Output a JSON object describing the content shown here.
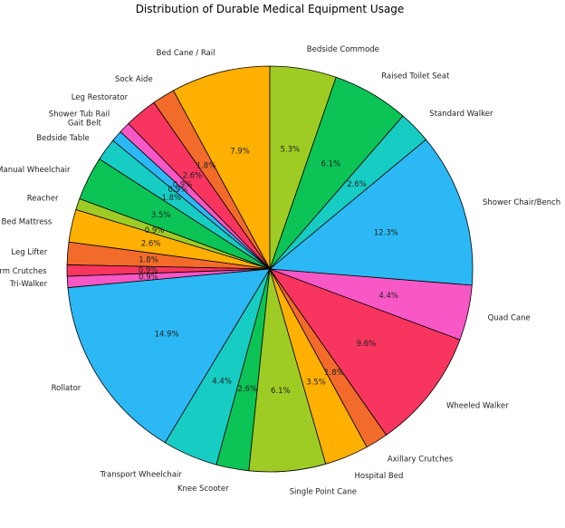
{
  "chart_data": {
    "type": "pie",
    "title": "Distribution of Durable Medical Equipment Usage",
    "start_angle_deg": 90,
    "direction": "counterclockwise",
    "slices": [
      {
        "label": "Bed Cane / Rail",
        "value": 7.9,
        "pct_label": "7.9%",
        "color": "#FFB000"
      },
      {
        "label": "Sock Aide",
        "value": 1.8,
        "pct_label": "1.8%",
        "color": "#F26B2A"
      },
      {
        "label": "Leg Restorator",
        "value": 2.6,
        "pct_label": "2.6%",
        "color": "#F7355F"
      },
      {
        "label": "Shower Tub Rail",
        "value": 0.9,
        "pct_label": "0.9%",
        "color": "#F857C6"
      },
      {
        "label": "Gait Belt",
        "value": 0.9,
        "pct_label": "0.9%",
        "color": "#2BB8F5"
      },
      {
        "label": "Bedside Table",
        "value": 1.8,
        "pct_label": "1.8%",
        "color": "#17CCC3"
      },
      {
        "label": "Manual Wheelchair",
        "value": 3.5,
        "pct_label": "3.5%",
        "color": "#0BC455"
      },
      {
        "label": "Reacher",
        "value": 0.9,
        "pct_label": "0.9%",
        "color": "#9FCC24"
      },
      {
        "label": "Bed Mattress",
        "value": 2.6,
        "pct_label": "2.6%",
        "color": "#FFB000"
      },
      {
        "label": "Leg Lifter",
        "value": 1.8,
        "pct_label": "1.8%",
        "color": "#F26B2A"
      },
      {
        "label": "Forearm Crutches",
        "value": 0.9,
        "pct_label": "0.9%",
        "color": "#F7355F"
      },
      {
        "label": "Tri-Walker",
        "value": 0.9,
        "pct_label": "0.9%",
        "color": "#F857C6"
      },
      {
        "label": "Rollator",
        "value": 14.9,
        "pct_label": "14.9%",
        "color": "#2BB8F5"
      },
      {
        "label": "Transport Wheelchair",
        "value": 4.4,
        "pct_label": "4.4%",
        "color": "#17CCC3"
      },
      {
        "label": "Knee Scooter",
        "value": 2.6,
        "pct_label": "2.6%",
        "color": "#0BC455"
      },
      {
        "label": "Single Point Cane",
        "value": 6.1,
        "pct_label": "6.1%",
        "color": "#9FCC24"
      },
      {
        "label": "Hospital Bed",
        "value": 3.5,
        "pct_label": "3.5%",
        "color": "#FFB000"
      },
      {
        "label": "Axillary Crutches",
        "value": 1.8,
        "pct_label": "1.8%",
        "color": "#F26B2A"
      },
      {
        "label": "Wheeled Walker",
        "value": 9.6,
        "pct_label": "9.6%",
        "color": "#F7355F"
      },
      {
        "label": "Quad Cane",
        "value": 4.4,
        "pct_label": "4.4%",
        "color": "#F857C6"
      },
      {
        "label": "Shower Chair/Bench",
        "value": 12.3,
        "pct_label": "12.3%",
        "color": "#2BB8F5"
      },
      {
        "label": "Standard Walker",
        "value": 2.6,
        "pct_label": "2.6%",
        "color": "#17CCC3"
      },
      {
        "label": "Raised Toilet Seat",
        "value": 6.1,
        "pct_label": "6.1%",
        "color": "#0BC455"
      },
      {
        "label": "Bedside Commode",
        "value": 5.3,
        "pct_label": "5.3%",
        "color": "#9FCC24"
      }
    ]
  }
}
